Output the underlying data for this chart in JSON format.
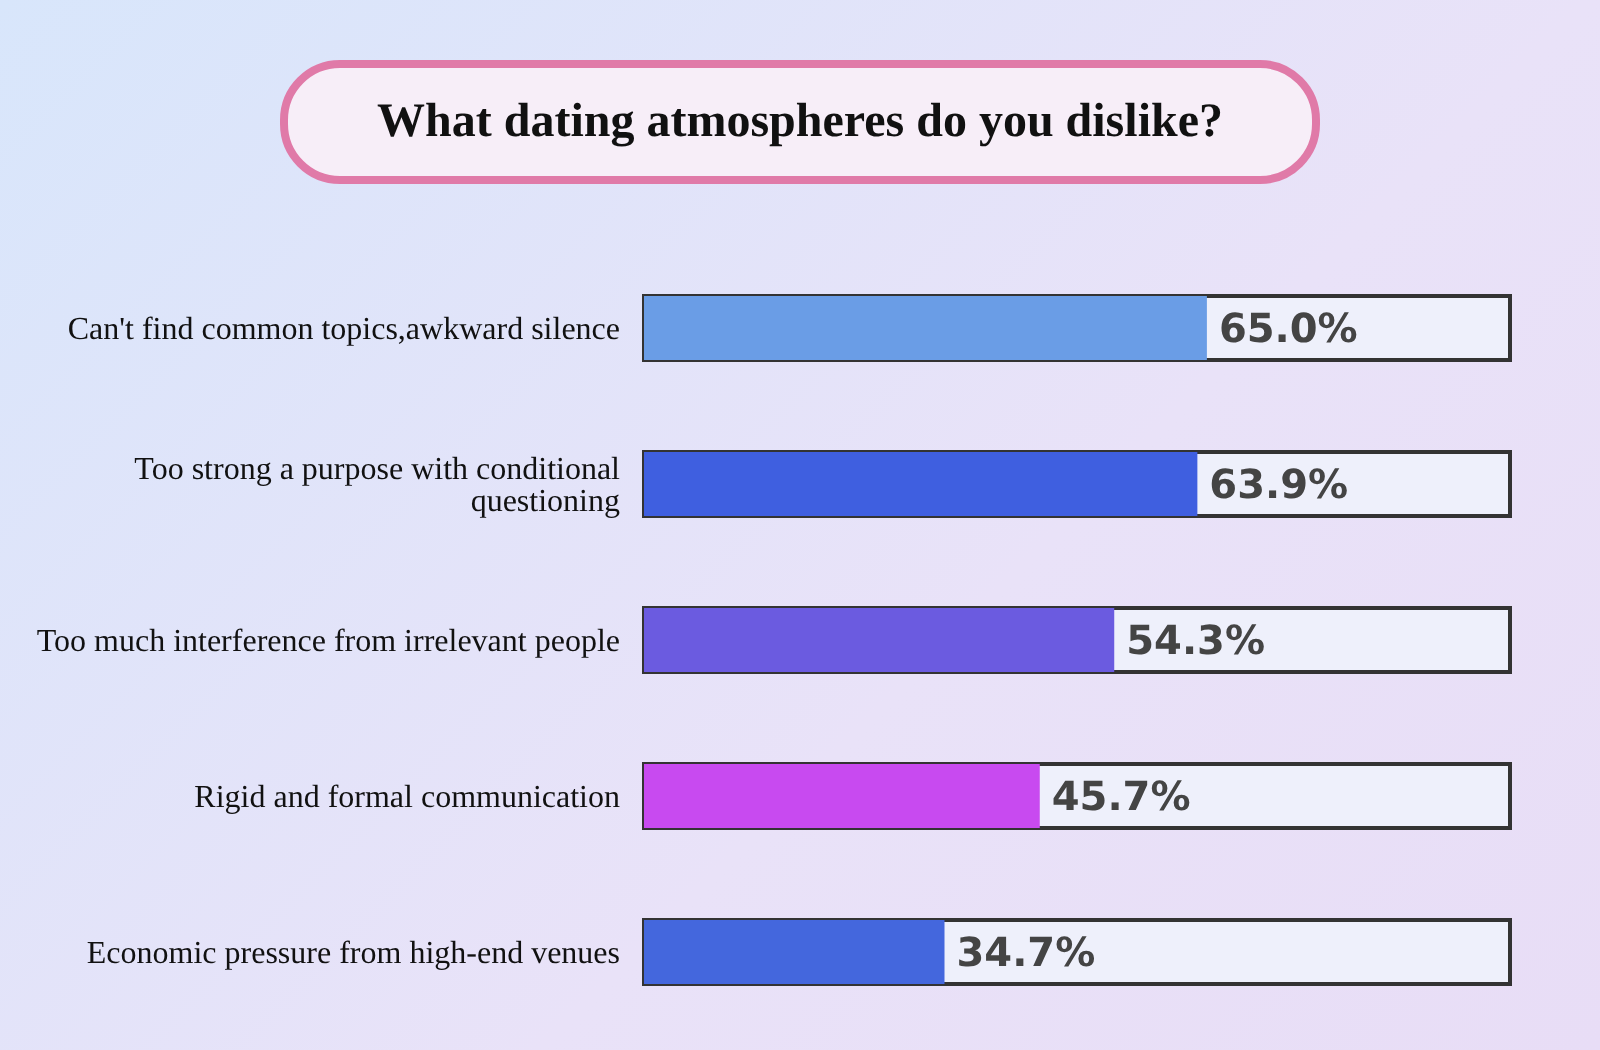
{
  "chart_data": {
    "type": "bar",
    "orientation": "horizontal",
    "title": "What dating atmospheres do you dislike?",
    "categories": [
      "Can't find common topics,awkward silence",
      "Too strong a purpose with conditional questioning",
      "Too much interference from irrelevant people",
      "Rigid and formal communication",
      "Economic pressure from high-end venues"
    ],
    "values": [
      65.0,
      63.9,
      54.3,
      45.7,
      34.7
    ],
    "colors": [
      "#6a9de6",
      "#3f5fe0",
      "#6b5be0",
      "#c84af0",
      "#4467dd"
    ],
    "value_labels": [
      "65.0%",
      "63.9%",
      "54.3%",
      "45.7%",
      "34.7%"
    ],
    "xlim": [
      0,
      100
    ],
    "tick_labels": "y"
  }
}
